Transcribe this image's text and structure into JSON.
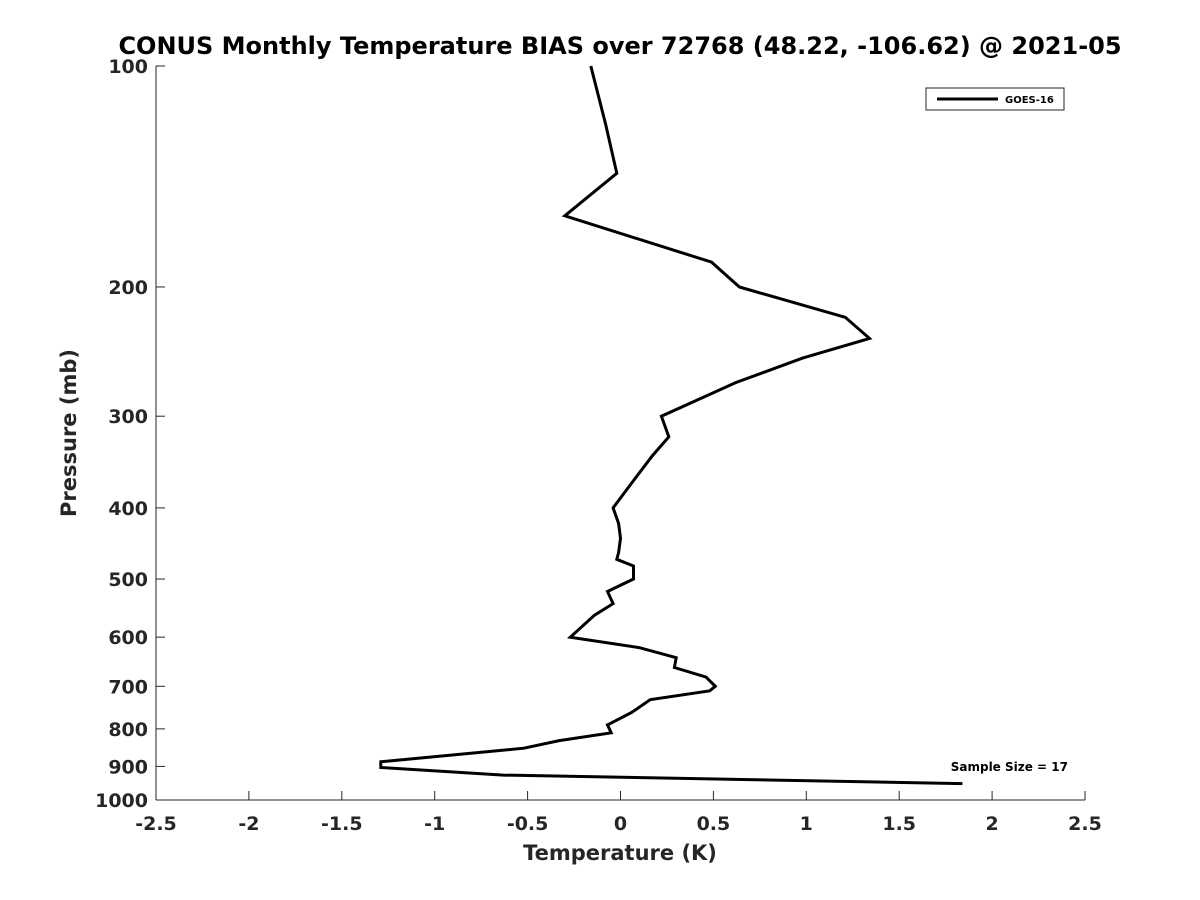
{
  "chart_data": {
    "type": "line",
    "title": "CONUS Monthly Temperature BIAS over 72768 (48.22, -106.62) @ 2021-05",
    "xlabel": "Temperature (K)",
    "ylabel": "Pressure (mb)",
    "xlim": [
      -2.5,
      2.5
    ],
    "ylim": [
      100,
      1000
    ],
    "y_scale": "log",
    "y_reversed": true,
    "grid": false,
    "legend_position": "top-right",
    "x_ticks": [
      "-2.5",
      "-2",
      "-1.5",
      "-1",
      "-0.5",
      "0",
      "0.5",
      "1",
      "1.5",
      "2",
      "2.5"
    ],
    "y_ticks": [
      "100",
      "200",
      "300",
      "400",
      "500",
      "600",
      "700",
      "800",
      "900",
      "1000"
    ],
    "annotation": "Sample Size = 17",
    "series": [
      {
        "name": "GOES-16",
        "color": "#000000",
        "points": [
          {
            "x": -0.16,
            "y": 100
          },
          {
            "x": -0.08,
            "y": 120
          },
          {
            "x": -0.02,
            "y": 140
          },
          {
            "x": -0.3,
            "y": 160
          },
          {
            "x": 0.49,
            "y": 185
          },
          {
            "x": 0.64,
            "y": 200
          },
          {
            "x": 1.21,
            "y": 220
          },
          {
            "x": 1.34,
            "y": 235
          },
          {
            "x": 0.98,
            "y": 250
          },
          {
            "x": 0.62,
            "y": 270
          },
          {
            "x": 0.22,
            "y": 300
          },
          {
            "x": 0.26,
            "y": 320
          },
          {
            "x": 0.17,
            "y": 340
          },
          {
            "x": 0.06,
            "y": 370
          },
          {
            "x": -0.04,
            "y": 400
          },
          {
            "x": -0.01,
            "y": 420
          },
          {
            "x": 0.0,
            "y": 440
          },
          {
            "x": -0.01,
            "y": 460
          },
          {
            "x": -0.02,
            "y": 470
          },
          {
            "x": 0.07,
            "y": 480
          },
          {
            "x": 0.07,
            "y": 500
          },
          {
            "x": -0.07,
            "y": 520
          },
          {
            "x": -0.04,
            "y": 540
          },
          {
            "x": -0.14,
            "y": 560
          },
          {
            "x": -0.27,
            "y": 600
          },
          {
            "x": 0.1,
            "y": 620
          },
          {
            "x": 0.3,
            "y": 640
          },
          {
            "x": 0.29,
            "y": 660
          },
          {
            "x": 0.46,
            "y": 680
          },
          {
            "x": 0.51,
            "y": 700
          },
          {
            "x": 0.48,
            "y": 710
          },
          {
            "x": 0.16,
            "y": 730
          },
          {
            "x": 0.06,
            "y": 760
          },
          {
            "x": -0.07,
            "y": 790
          },
          {
            "x": -0.05,
            "y": 810
          },
          {
            "x": -0.33,
            "y": 830
          },
          {
            "x": -0.52,
            "y": 850
          },
          {
            "x": -1.29,
            "y": 887
          },
          {
            "x": -1.29,
            "y": 903
          },
          {
            "x": -0.63,
            "y": 925
          },
          {
            "x": 1.84,
            "y": 950
          }
        ]
      }
    ]
  }
}
